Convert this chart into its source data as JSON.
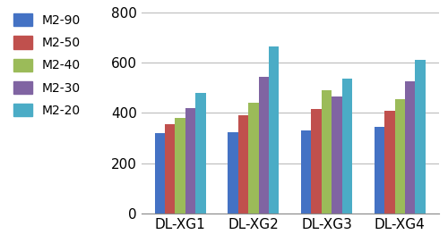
{
  "categories": [
    "DL-XG1",
    "DL-XG2",
    "DL-XG3",
    "DL-XG4"
  ],
  "series": [
    {
      "label": "M2-90",
      "color": "#4472C4",
      "values": [
        320,
        325,
        330,
        345
      ]
    },
    {
      "label": "M2-50",
      "color": "#C0504D",
      "values": [
        355,
        390,
        415,
        410
      ]
    },
    {
      "label": "M2-40",
      "color": "#9BBB59",
      "values": [
        380,
        440,
        490,
        455
      ]
    },
    {
      "label": "M2-30",
      "color": "#8064A2",
      "values": [
        420,
        545,
        465,
        525
      ]
    },
    {
      "label": "M2-20",
      "color": "#4BACC6",
      "values": [
        480,
        665,
        535,
        610
      ]
    }
  ],
  "ylim": [
    0,
    800
  ],
  "yticks": [
    0,
    200,
    400,
    600,
    800
  ],
  "bar_width": 0.14,
  "grid_color": "#BBBBBB",
  "background_color": "#FFFFFF",
  "legend_fontsize": 10,
  "tick_fontsize": 11,
  "label_fontsize": 11
}
